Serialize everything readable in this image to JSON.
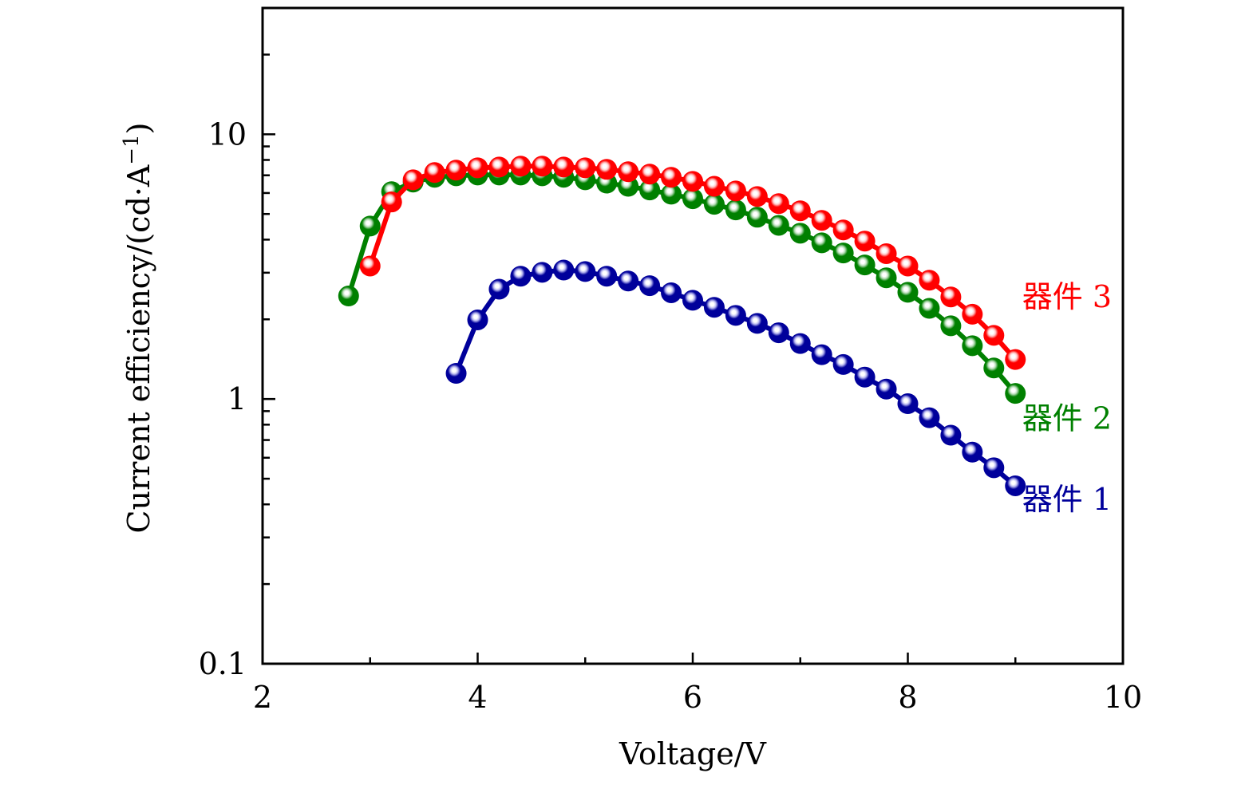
{
  "chart_data": {
    "type": "line",
    "title": "",
    "xlabel": "Voltage/V",
    "ylabel": "Current efficiency/(cd·A⁻¹)",
    "ylabel_main": "Current efficiency/(cd·A",
    "ylabel_sup": "−1",
    "ylabel_close": ")",
    "xlim": [
      2,
      10
    ],
    "ylim": [
      0.1,
      30
    ],
    "yscale": "log",
    "grid": false,
    "x_ticks": [
      2,
      4,
      6,
      8,
      10
    ],
    "x_tick_labels": [
      "2",
      "4",
      "6",
      "8",
      "10"
    ],
    "x_minor_ticks": [
      3,
      5,
      7,
      9
    ],
    "y_ticks": [
      0.1,
      1,
      10
    ],
    "y_tick_labels": [
      "0.1",
      "1",
      "10"
    ],
    "legend_placement": "right (inline labels)",
    "series": [
      {
        "name": "器件 1",
        "color": "#00009B",
        "highlight": "#B8B8F0",
        "x": [
          3.8,
          4.0,
          4.2,
          4.4,
          4.6,
          4.8,
          5.0,
          5.2,
          5.4,
          5.6,
          5.8,
          6.0,
          6.2,
          6.4,
          6.6,
          6.8,
          7.0,
          7.2,
          7.4,
          7.6,
          7.8,
          8.0,
          8.2,
          8.4,
          8.6,
          8.8,
          9.0
        ],
        "values": [
          1.25,
          1.99,
          2.6,
          2.91,
          3.01,
          3.07,
          3.03,
          2.91,
          2.79,
          2.68,
          2.52,
          2.36,
          2.22,
          2.07,
          1.93,
          1.78,
          1.62,
          1.47,
          1.35,
          1.21,
          1.09,
          0.96,
          0.85,
          0.73,
          0.63,
          0.55,
          0.47
        ],
        "label_value": 0.42
      },
      {
        "name": "器件 2",
        "color": "#008000",
        "highlight": "#B8DDB8",
        "x": [
          2.8,
          3.0,
          3.2,
          3.4,
          3.6,
          3.8,
          4.0,
          4.2,
          4.4,
          4.6,
          4.8,
          5.0,
          5.2,
          5.4,
          5.6,
          5.8,
          6.0,
          6.2,
          6.4,
          6.6,
          6.8,
          7.0,
          7.2,
          7.4,
          7.6,
          7.8,
          8.0,
          8.2,
          8.4,
          8.6,
          8.8,
          9.0
        ],
        "values": [
          2.45,
          4.5,
          6.07,
          6.6,
          6.88,
          6.97,
          7.02,
          7.02,
          7.02,
          6.97,
          6.88,
          6.73,
          6.54,
          6.36,
          6.16,
          5.94,
          5.71,
          5.44,
          5.18,
          4.86,
          4.53,
          4.23,
          3.89,
          3.56,
          3.21,
          2.87,
          2.53,
          2.2,
          1.89,
          1.59,
          1.31,
          1.05
        ],
        "label_value": 0.85
      },
      {
        "name": "器件 3",
        "color": "#FF0000",
        "highlight": "#FFC8C8",
        "x": [
          3.0,
          3.2,
          3.4,
          3.6,
          3.8,
          4.0,
          4.2,
          4.4,
          4.6,
          4.8,
          5.0,
          5.2,
          5.4,
          5.6,
          5.8,
          6.0,
          6.2,
          6.4,
          6.6,
          6.8,
          7.0,
          7.2,
          7.4,
          7.6,
          7.8,
          8.0,
          8.2,
          8.4,
          8.6,
          8.8,
          9.0
        ],
        "values": [
          3.18,
          5.55,
          6.73,
          7.17,
          7.32,
          7.47,
          7.52,
          7.58,
          7.58,
          7.52,
          7.47,
          7.37,
          7.22,
          7.07,
          6.88,
          6.64,
          6.36,
          6.11,
          5.82,
          5.47,
          5.14,
          4.73,
          4.35,
          3.95,
          3.54,
          3.18,
          2.81,
          2.43,
          2.09,
          1.74,
          1.41
        ],
        "label_value": 2.45
      }
    ]
  }
}
